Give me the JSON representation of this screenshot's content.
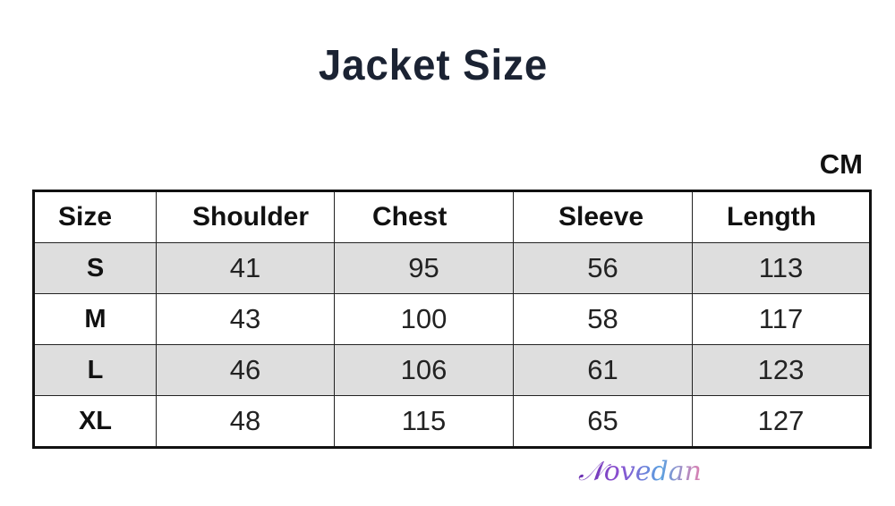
{
  "title": "Jacket Size",
  "unit": "CM",
  "watermark": "Novedan",
  "table": {
    "headers": [
      "Size",
      "Shoulder",
      "Chest",
      "Sleeve",
      "Length"
    ],
    "rows": [
      [
        "S",
        "41",
        "95",
        "56",
        "113"
      ],
      [
        "M",
        "43",
        "100",
        "58",
        "117"
      ],
      [
        "L",
        "46",
        "106",
        "61",
        "123"
      ],
      [
        "XL",
        "48",
        "115",
        "65",
        "127"
      ]
    ],
    "shaded_row_color": "#dedede"
  }
}
